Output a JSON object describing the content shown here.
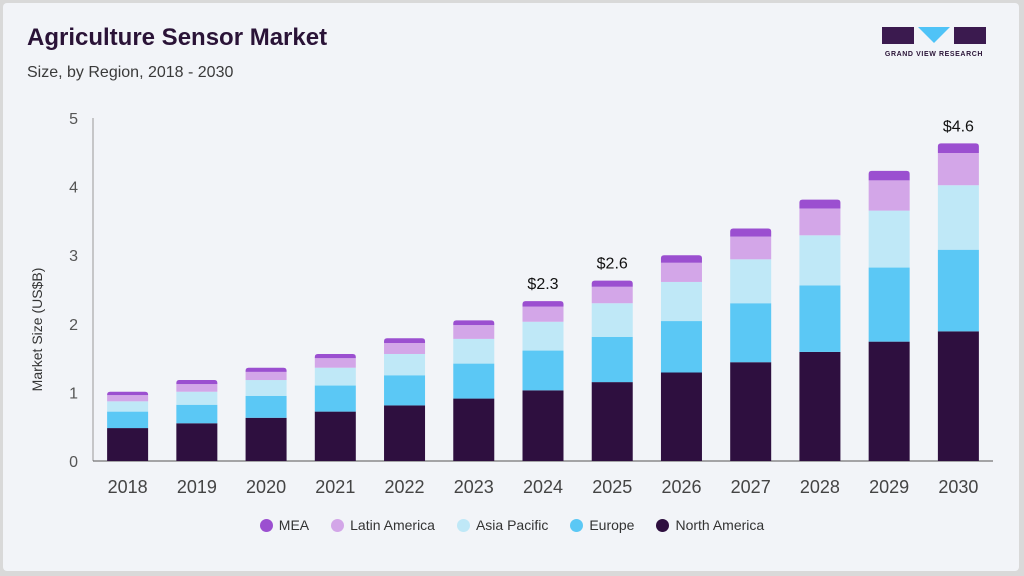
{
  "header": {
    "title": "Agriculture Sensor Market",
    "subtitle": "Size, by Region, 2018 - 2030"
  },
  "logo": {
    "text": "GRAND VIEW RESEARCH",
    "colors": {
      "dark": "#3b1a4f",
      "accent": "#4fc3f7"
    }
  },
  "chart_data": {
    "type": "bar",
    "stacked": true,
    "categories": [
      "2018",
      "2019",
      "2020",
      "2021",
      "2022",
      "2023",
      "2024",
      "2025",
      "2026",
      "2027",
      "2028",
      "2029",
      "2030"
    ],
    "ylabel": "Market Size (US$B)",
    "ylim": [
      0,
      5
    ],
    "yticks": [
      0,
      1,
      2,
      3,
      4,
      5
    ],
    "grid": false,
    "legend_position": "bottom-center",
    "series": [
      {
        "name": "North America",
        "color": "#2e0f3f",
        "values": [
          0.48,
          0.55,
          0.63,
          0.72,
          0.81,
          0.91,
          1.03,
          1.15,
          1.29,
          1.44,
          1.59,
          1.74,
          1.89
        ]
      },
      {
        "name": "Europe",
        "color": "#5bc8f5",
        "values": [
          0.24,
          0.27,
          0.32,
          0.38,
          0.44,
          0.51,
          0.58,
          0.66,
          0.75,
          0.86,
          0.97,
          1.08,
          1.19
        ]
      },
      {
        "name": "Asia Pacific",
        "color": "#bfe8f7",
        "values": [
          0.15,
          0.19,
          0.23,
          0.26,
          0.31,
          0.36,
          0.42,
          0.49,
          0.57,
          0.64,
          0.73,
          0.83,
          0.94
        ]
      },
      {
        "name": "Latin America",
        "color": "#d3a6e8",
        "values": [
          0.09,
          0.11,
          0.12,
          0.14,
          0.16,
          0.2,
          0.22,
          0.24,
          0.28,
          0.33,
          0.39,
          0.44,
          0.47
        ]
      },
      {
        "name": "MEA",
        "color": "#9b4fd0",
        "values": [
          0.05,
          0.06,
          0.06,
          0.06,
          0.07,
          0.07,
          0.08,
          0.09,
          0.11,
          0.12,
          0.13,
          0.14,
          0.14
        ]
      }
    ],
    "legend_order": [
      "MEA",
      "Latin America",
      "Asia Pacific",
      "Europe",
      "North America"
    ],
    "annotations": [
      {
        "category": "2024",
        "text": "$2.3"
      },
      {
        "category": "2025",
        "text": "$2.6"
      },
      {
        "category": "2030",
        "text": "$4.6"
      }
    ]
  }
}
